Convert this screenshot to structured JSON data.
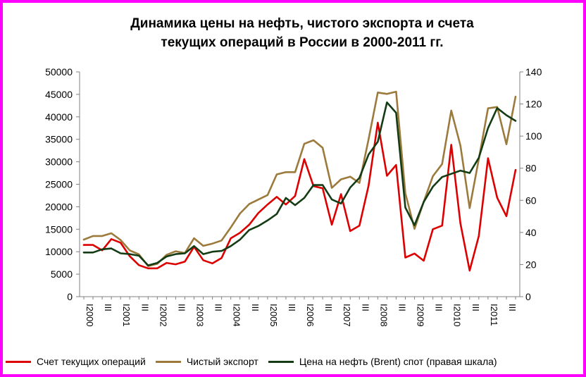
{
  "chart_data": {
    "type": "line",
    "title_lines": [
      "Динамика  цены на нефть, чистого экспорта и счета",
      "текущих операций в России в 2000-2011 гг."
    ],
    "y_left": {
      "min": 0,
      "max": 50000,
      "step": 5000,
      "ticks": [
        "0",
        "5000",
        "10000",
        "15000",
        "20000",
        "25000",
        "30000",
        "35000",
        "40000",
        "45000",
        "50000"
      ]
    },
    "y_right": {
      "min": 0,
      "max": 140,
      "step": 20,
      "ticks": [
        "0",
        "20",
        "40",
        "60",
        "80",
        "100",
        "120",
        "140"
      ]
    },
    "x_labels": [
      {
        "q": 0,
        "text": "I2000"
      },
      {
        "q": 2,
        "text": "III"
      },
      {
        "q": 4,
        "text": "I2001"
      },
      {
        "q": 6,
        "text": "III"
      },
      {
        "q": 8,
        "text": "I2002"
      },
      {
        "q": 10,
        "text": "III"
      },
      {
        "q": 12,
        "text": "I2003"
      },
      {
        "q": 14,
        "text": "III"
      },
      {
        "q": 16,
        "text": "I2004"
      },
      {
        "q": 18,
        "text": "III"
      },
      {
        "q": 20,
        "text": "I2005"
      },
      {
        "q": 22,
        "text": "III"
      },
      {
        "q": 24,
        "text": "I2006"
      },
      {
        "q": 26,
        "text": "III"
      },
      {
        "q": 28,
        "text": "I2007"
      },
      {
        "q": 30,
        "text": "III"
      },
      {
        "q": 32,
        "text": "I2008"
      },
      {
        "q": 34,
        "text": "III"
      },
      {
        "q": 36,
        "text": "I2009"
      },
      {
        "q": 38,
        "text": "III"
      },
      {
        "q": 40,
        "text": "I2010"
      },
      {
        "q": 42,
        "text": "III"
      },
      {
        "q": 44,
        "text": "I2011"
      },
      {
        "q": 46,
        "text": "III"
      }
    ],
    "grid": false,
    "legend_position": "bottom",
    "series": [
      {
        "name": "Счет текущих операций",
        "color": "#dd0000",
        "axis": "left",
        "values": [
          11500,
          11500,
          10300,
          12800,
          12000,
          9000,
          7000,
          6300,
          6300,
          7500,
          7200,
          7800,
          11100,
          8100,
          7400,
          8600,
          13000,
          14200,
          16000,
          18600,
          20500,
          22200,
          20500,
          22400,
          30600,
          24600,
          24100,
          16000,
          22800,
          14600,
          15800,
          24700,
          38700,
          26900,
          29300,
          8700,
          9600,
          8000,
          15000,
          15800,
          33800,
          16300,
          5800,
          13500,
          30800,
          22000,
          17900,
          28200
        ]
      },
      {
        "name": "Чистый экспорт",
        "color": "#9c7a3c",
        "axis": "left",
        "values": [
          12700,
          13500,
          13500,
          14100,
          12600,
          10300,
          9400,
          6800,
          7300,
          9300,
          10100,
          9700,
          13000,
          11300,
          11800,
          12500,
          15400,
          18500,
          20600,
          21600,
          22600,
          27200,
          27700,
          27700,
          34000,
          34800,
          33100,
          24200,
          26100,
          26700,
          25300,
          35000,
          45400,
          45100,
          45600,
          23000,
          15100,
          21100,
          26800,
          29500,
          41400,
          33600,
          19700,
          30600,
          41900,
          42200,
          33900,
          44500
        ]
      },
      {
        "name": "Цена на нефть (Brent) спот (правая шкала)",
        "color": "#143c14",
        "axis": "right",
        "values": [
          27.5,
          27.5,
          29.5,
          30,
          27,
          26.5,
          25.5,
          19.5,
          21,
          25,
          26.5,
          27,
          31.5,
          26.5,
          28,
          28.5,
          31.5,
          35.5,
          41.5,
          44,
          47.5,
          51.5,
          61.5,
          57,
          61.5,
          69.5,
          69.5,
          60.5,
          58,
          68,
          74,
          88.5,
          96.5,
          121,
          114.5,
          55.5,
          44.5,
          59,
          68.5,
          74.5,
          76.5,
          78.5,
          77,
          86.5,
          105,
          117.5,
          113,
          109.5
        ]
      }
    ]
  }
}
